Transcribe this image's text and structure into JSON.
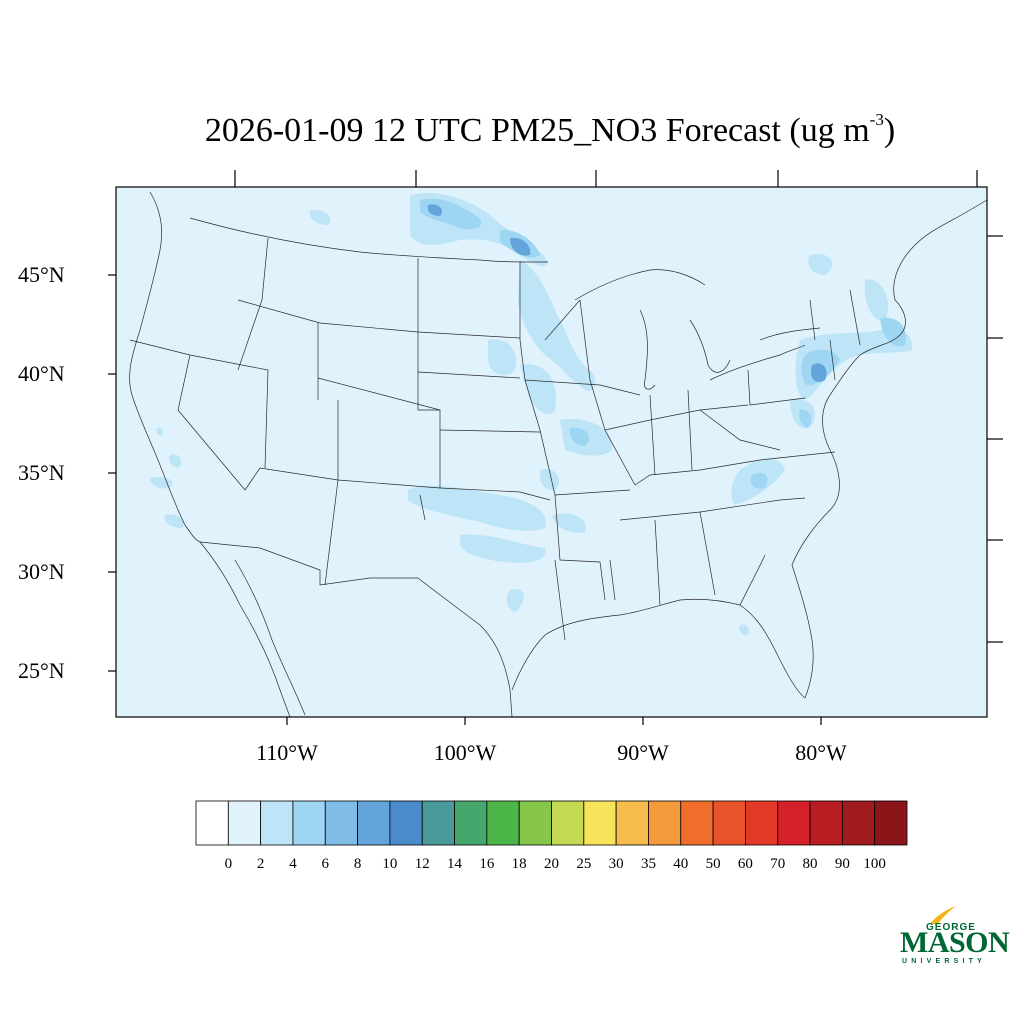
{
  "title": {
    "main": "2026-01-09 12 UTC PM25_NO3 Forecast (ug m",
    "exponent": "-3",
    "close": ")"
  },
  "map": {
    "lat_labels": [
      "45°N",
      "40°N",
      "35°N",
      "30°N",
      "25°N"
    ],
    "lon_labels": [
      "110°W",
      "100°W",
      "90°W",
      "80°W"
    ],
    "background_color": "#e0f2fb"
  },
  "colorbar": {
    "levels": [
      "0",
      "2",
      "4",
      "6",
      "8",
      "10",
      "12",
      "14",
      "16",
      "18",
      "20",
      "25",
      "30",
      "35",
      "40",
      "50",
      "60",
      "70",
      "80",
      "90",
      "100"
    ],
    "colors": [
      "#ffffff",
      "#e0f2fb",
      "#bde5f7",
      "#9dd5f3",
      "#7fbde6",
      "#63a5db",
      "#4a8ccb",
      "#4a9a9b",
      "#46a76c",
      "#4cb748",
      "#86c64a",
      "#c5d853",
      "#f8e45a",
      "#f7bd4c",
      "#f49a3d",
      "#f06d2c",
      "#e9532b",
      "#e23a28",
      "#d52029",
      "#b91c23",
      "#a11a1e",
      "#8b1519"
    ]
  },
  "logo": {
    "line1": "GEORGE",
    "line2": "MASON",
    "line3": "UNIVERSITY",
    "color": "#006633",
    "accent": "#f2b313"
  }
}
